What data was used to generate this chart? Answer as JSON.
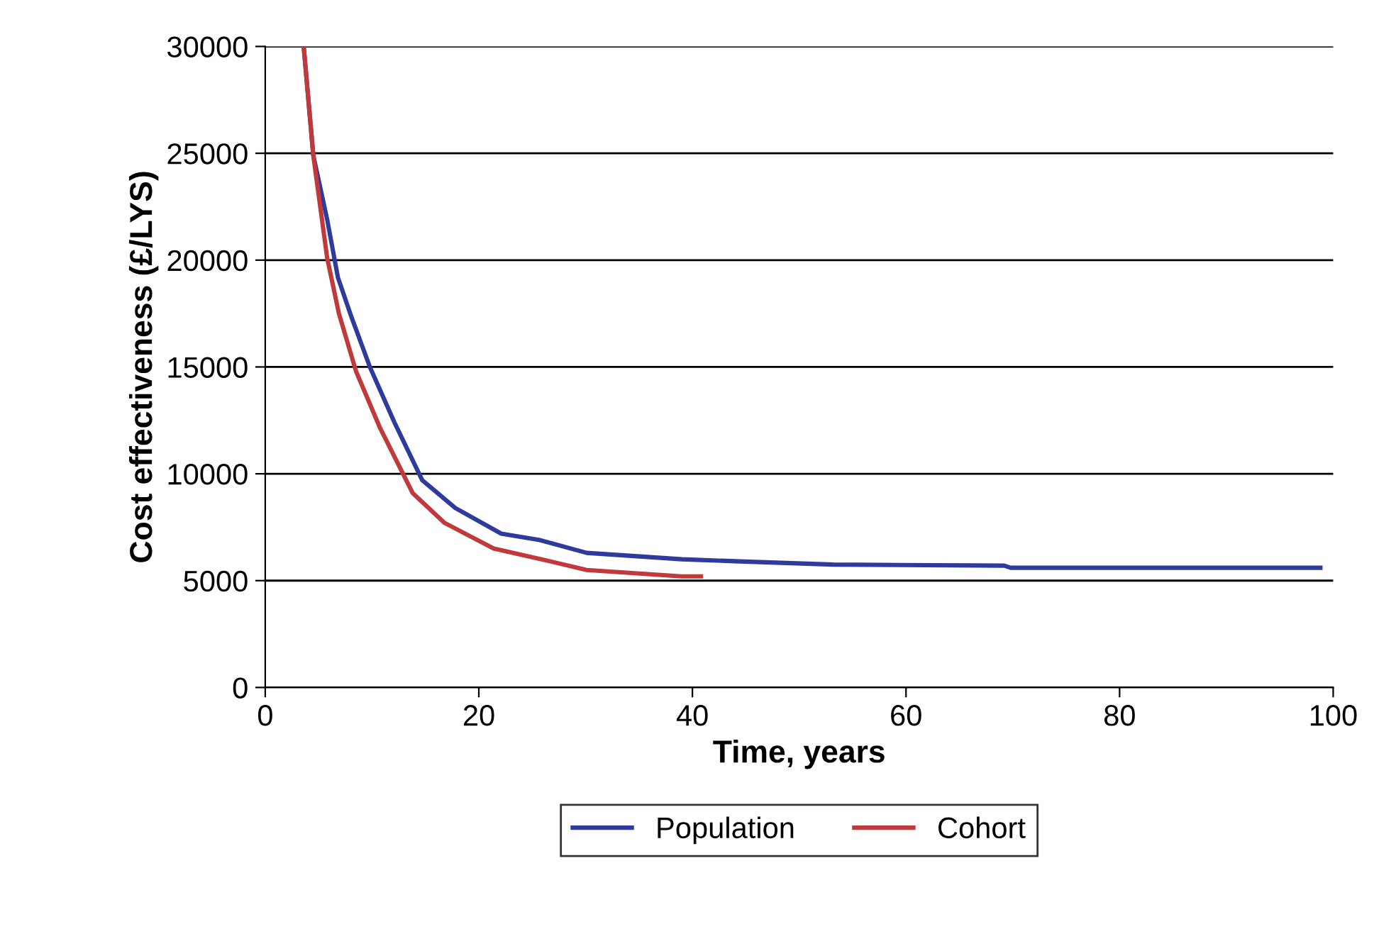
{
  "chart_data": {
    "type": "line",
    "xlabel": "Time, years",
    "ylabel": "Cost effectiveness (£/LYS)",
    "xlim": [
      0,
      100
    ],
    "xticks": [
      0,
      20,
      40,
      60,
      80,
      100
    ],
    "ylim": [
      0,
      30000
    ],
    "yticks": [
      0,
      5000,
      10000,
      15000,
      20000,
      25000,
      30000
    ],
    "grid": "y",
    "legend": "bottom",
    "marker": "none",
    "line_style": "solid",
    "series": [
      {
        "name": "Population",
        "color": "#2e3a9c",
        "x": [
          3.6,
          4.5,
          5.8,
          6.8,
          8.1,
          9.8,
          12.1,
          14.7,
          17.8,
          22.1,
          25.7,
          30.1,
          39,
          44.4,
          53.2,
          69.2,
          69.8,
          98.8
        ],
        "values": [
          30000,
          24900,
          21900,
          19200,
          17300,
          15000,
          12400,
          9700,
          8400,
          7200,
          6900,
          6300,
          6000,
          5900,
          5750,
          5700,
          5600,
          5600
        ]
      },
      {
        "name": "Cohort",
        "color": "#c0393b",
        "x": [
          3.6,
          4.5,
          5.8,
          6.9,
          8.5,
          10.7,
          13.8,
          16.8,
          21.4,
          26.7,
          30.1,
          39,
          40.8
        ],
        "values": [
          30000,
          24900,
          20100,
          17500,
          14800,
          12200,
          9100,
          7700,
          6500,
          5900,
          5500,
          5200,
          5200
        ]
      }
    ]
  }
}
